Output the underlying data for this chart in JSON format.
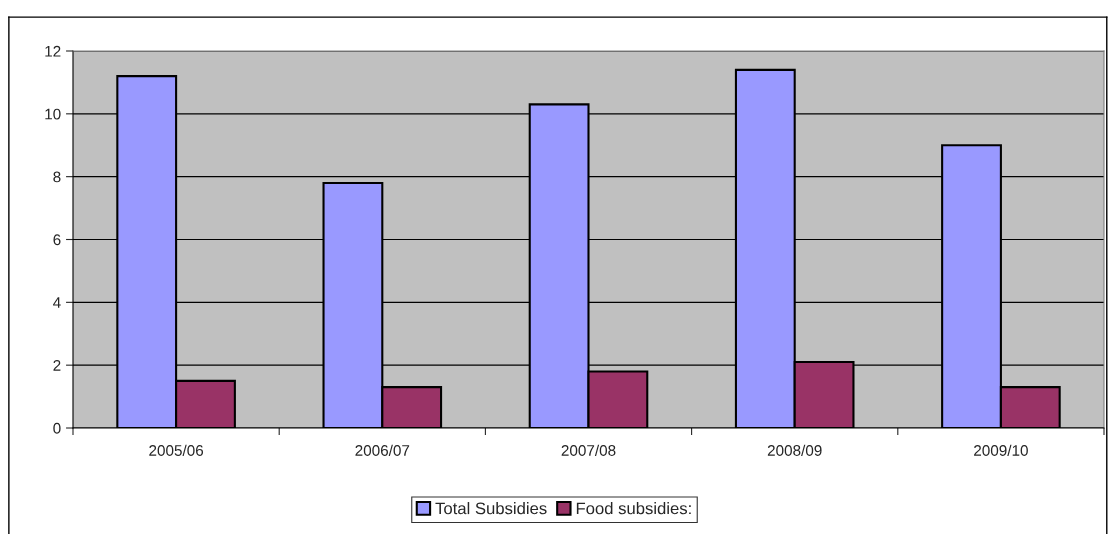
{
  "chart_data": {
    "type": "bar",
    "categories": [
      "2005/06",
      "2006/07",
      "2007/08",
      "2008/09",
      "2009/10"
    ],
    "series": [
      {
        "name": "Total Subsidies",
        "color": "#9999ff",
        "values": [
          11.2,
          7.8,
          10.3,
          11.4,
          9.0
        ]
      },
      {
        "name": "Food subsidies:",
        "color": "#993366",
        "values": [
          1.5,
          1.3,
          1.8,
          2.1,
          1.3
        ]
      }
    ],
    "ylim": [
      0,
      12
    ],
    "yticks": [
      0,
      2,
      4,
      6,
      8,
      10,
      12
    ],
    "grid": "y",
    "legend": "bottom"
  }
}
